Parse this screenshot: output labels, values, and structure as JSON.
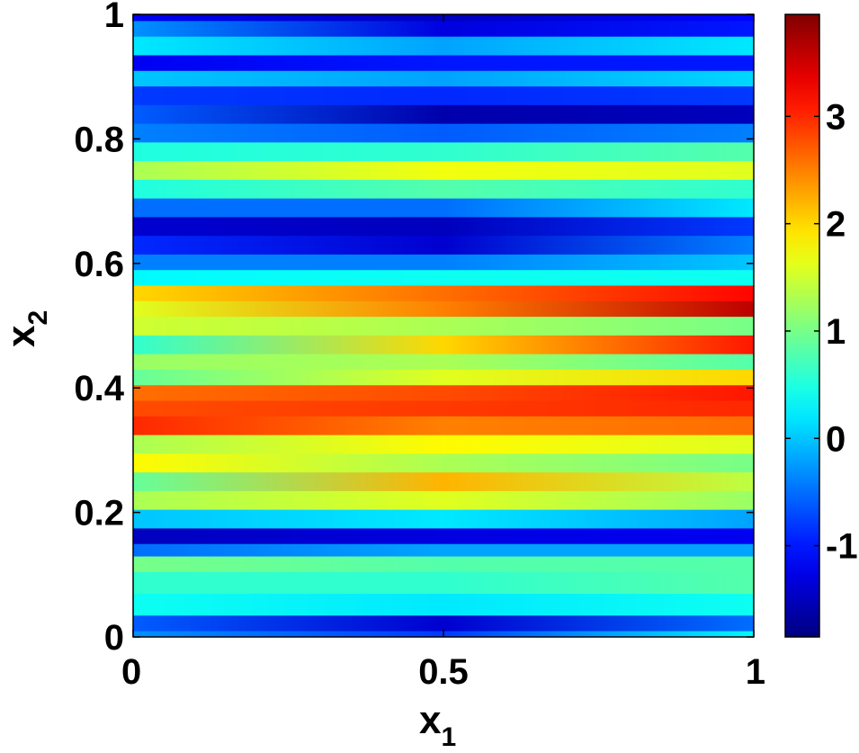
{
  "chart_data": {
    "type": "heatmap",
    "title": "",
    "xlabel": "x",
    "xlabel_subscript": "1",
    "ylabel": "x",
    "ylabel_subscript": "2",
    "xlim": [
      0,
      1
    ],
    "ylim": [
      0,
      1
    ],
    "x_ticks": [
      0,
      0.5,
      1
    ],
    "x_tick_labels": [
      "0",
      "0.5",
      "1"
    ],
    "y_ticks": [
      0,
      0.2,
      0.4,
      0.6,
      0.8,
      1
    ],
    "y_tick_labels": [
      "0",
      "0.2",
      "0.4",
      "0.6",
      "0.8",
      "1"
    ],
    "colormap": "jet",
    "color_range": [
      -1.85,
      3.95
    ],
    "colorbar_ticks": [
      -1,
      0,
      1,
      2,
      3
    ],
    "colorbar_tick_labels": [
      "-1",
      "0",
      "1",
      "2",
      "3"
    ],
    "grid": false,
    "field_bands": [
      {
        "y": 0.0,
        "left": -0.3,
        "mid": -0.8,
        "right": 0.3
      },
      {
        "y": 0.02,
        "left": -0.6,
        "mid": -1.4,
        "right": -0.5
      },
      {
        "y": 0.05,
        "left": 0.4,
        "mid": 0.2,
        "right": 0.4
      },
      {
        "y": 0.09,
        "left": 0.6,
        "mid": 0.6,
        "right": 0.8
      },
      {
        "y": 0.12,
        "left": 1.0,
        "mid": 0.8,
        "right": 0.8
      },
      {
        "y": 0.14,
        "left": -0.5,
        "mid": -0.2,
        "right": -0.2
      },
      {
        "y": 0.16,
        "left": -1.5,
        "mid": -1.3,
        "right": -1.2
      },
      {
        "y": 0.19,
        "left": 0.0,
        "mid": 0.2,
        "right": -0.2
      },
      {
        "y": 0.22,
        "left": 1.3,
        "mid": 1.6,
        "right": 1.2
      },
      {
        "y": 0.25,
        "left": 0.9,
        "mid": 2.2,
        "right": 1.4
      },
      {
        "y": 0.28,
        "left": 1.8,
        "mid": 1.3,
        "right": 1.0
      },
      {
        "y": 0.31,
        "left": 1.3,
        "mid": 1.8,
        "right": 1.6
      },
      {
        "y": 0.34,
        "left": 3.0,
        "mid": 2.5,
        "right": 2.6
      },
      {
        "y": 0.37,
        "left": 2.8,
        "mid": 2.9,
        "right": 3.0
      },
      {
        "y": 0.39,
        "left": 2.6,
        "mid": 2.8,
        "right": 3.1
      },
      {
        "y": 0.42,
        "left": 0.9,
        "mid": 1.6,
        "right": 2.0
      },
      {
        "y": 0.44,
        "left": 1.2,
        "mid": 1.3,
        "right": 0.8
      },
      {
        "y": 0.47,
        "left": 0.6,
        "mid": 2.0,
        "right": 3.1
      },
      {
        "y": 0.5,
        "left": 1.5,
        "mid": 1.3,
        "right": 1.0
      },
      {
        "y": 0.53,
        "left": 1.6,
        "mid": 2.5,
        "right": 3.6
      },
      {
        "y": 0.55,
        "left": 2.0,
        "mid": 2.6,
        "right": 3.2
      },
      {
        "y": 0.58,
        "left": 0.3,
        "mid": 0.4,
        "right": 0.4
      },
      {
        "y": 0.6,
        "left": -0.4,
        "mid": -0.4,
        "right": 0.0
      },
      {
        "y": 0.63,
        "left": -0.9,
        "mid": -1.4,
        "right": -0.4
      },
      {
        "y": 0.66,
        "left": -1.4,
        "mid": -1.5,
        "right": -0.8
      },
      {
        "y": 0.69,
        "left": -0.5,
        "mid": -0.5,
        "right": 0.2
      },
      {
        "y": 0.72,
        "left": 0.5,
        "mid": 0.8,
        "right": 0.6
      },
      {
        "y": 0.75,
        "left": 1.3,
        "mid": 1.7,
        "right": 1.6
      },
      {
        "y": 0.78,
        "left": 0.5,
        "mid": 0.6,
        "right": 0.8
      },
      {
        "y": 0.81,
        "left": -0.4,
        "mid": -0.6,
        "right": -0.4
      },
      {
        "y": 0.84,
        "left": -0.6,
        "mid": -1.6,
        "right": -1.5
      },
      {
        "y": 0.87,
        "left": -0.8,
        "mid": -0.9,
        "right": -0.8
      },
      {
        "y": 0.9,
        "left": 0.0,
        "mid": -0.2,
        "right": 0.1
      },
      {
        "y": 0.92,
        "left": -1.2,
        "mid": -1.0,
        "right": -1.0
      },
      {
        "y": 0.95,
        "left": 0.2,
        "mid": -0.2,
        "right": 0.2
      },
      {
        "y": 0.98,
        "left": -0.3,
        "mid": -1.3,
        "right": -1.0
      },
      {
        "y": 1.0,
        "left": -1.2,
        "mid": -1.5,
        "right": -1.1
      }
    ]
  }
}
